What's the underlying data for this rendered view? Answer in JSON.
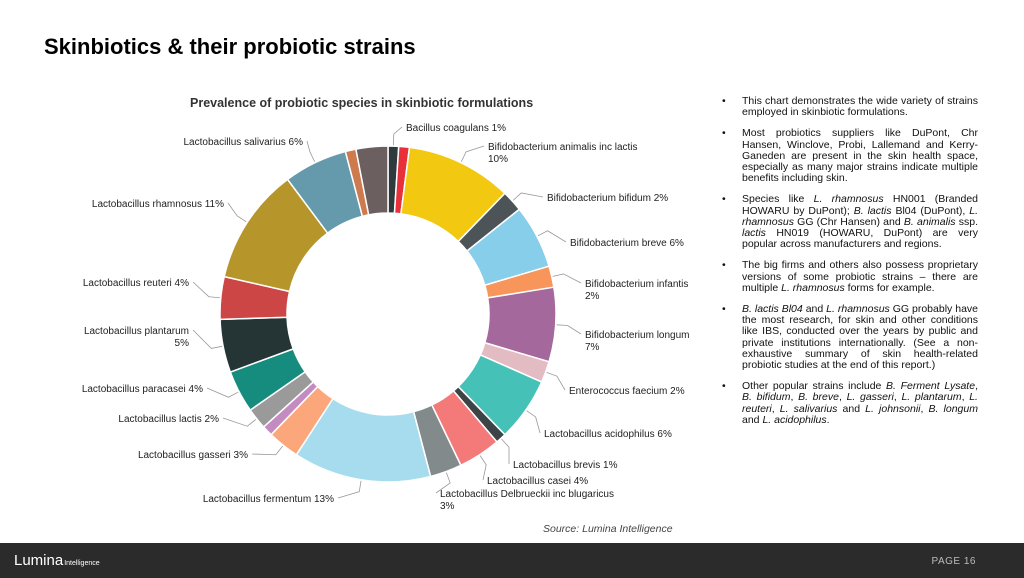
{
  "slide": {
    "title": "Skinbiotics & their probiotic strains",
    "source": "Source: Lumina Intelligence",
    "page_label": "PAGE 16",
    "logo_main": "Lumina",
    "logo_sub": "Intelligence"
  },
  "bullets": [
    {
      "html": "This chart demonstrates the wide variety of strains employed in skinbiotic formulations."
    },
    {
      "html": "Most probiotics suppliers like DuPont, Chr Hansen, Winclove, Probi, Lallemand and Kerry-Ganeden are present in the skin health space, especially as many major strains indicate multiple benefits including skin."
    },
    {
      "html": "Species like <i>L. rhamnosus</i> HN001 (Branded HOWARU by DuPont); <i>B. lactis</i> Bl04 (DuPont), <i>L. rhamnosus</i> GG (Chr Hansen) and <i>B. animalis</i> ssp. <i>lactis</i> HN019 (HOWARU, DuPont) are very popular across manufacturers and regions."
    },
    {
      "html": "The big firms and others also possess proprietary versions of some probiotic strains – there are multiple <i>L. rhamnosus</i> forms for example."
    },
    {
      "html": "<i>B. lactis Bl04</i> and <i>L. rhamnosus</i> GG probably have the most research, for skin and other conditions like IBS, conducted over the years by public and private institutions internationally. (See a non-exhaustive summary of skin health-related probiotic studies at the end of this report.)"
    },
    {
      "html": "Other popular strains include <i>B. Ferment Lysate</i>, <i>B. bifidum</i>, <i>B. breve</i>, <i>L. gasseri</i>, <i>L. plantarum</i>, <i>L. reuteri</i>, <i>L. salivarius</i> and <i>L. johnsonii</i>, <i>B. longum</i> and <i>L. acidophilus</i>."
    }
  ],
  "chart_data": {
    "type": "pie",
    "title": "Prevalence of probiotic species in skinbiotic formulations",
    "unit": "%",
    "slices": [
      {
        "name": "Bacillus coagulans",
        "value": 1,
        "label": "Bacillus coagulans 1%",
        "color": "#2f3a3d"
      },
      {
        "name": "",
        "value": 1,
        "label": "",
        "color": "#e8303a"
      },
      {
        "name": "Bifidobacterium animalis inc lactis",
        "value": 10,
        "label": "Bifidobacterium animalis inc lactis 10%",
        "color": "#f2c811"
      },
      {
        "name": "Bifidobacterium bifidum",
        "value": 2,
        "label": "Bifidobacterium bifidum 2%",
        "color": "#4d5458"
      },
      {
        "name": "Bifidobacterium breve",
        "value": 6,
        "label": "Bifidobacterium breve 6%",
        "color": "#87ceeb"
      },
      {
        "name": "Bifidobacterium infantis",
        "value": 2,
        "label": "Bifidobacterium infantis 2%",
        "color": "#f7955a"
      },
      {
        "name": "Bifidobacterium longum",
        "value": 7,
        "label": "Bifidobacterium longum 7%",
        "color": "#a4689c"
      },
      {
        "name": "Enterococcus faecium",
        "value": 2,
        "label": "Enterococcus faecium 2%",
        "color": "#e2bcc2"
      },
      {
        "name": "Lactobacillus acidophilus",
        "value": 6,
        "label": "Lactobacillus acidophilus 6%",
        "color": "#45c1b7"
      },
      {
        "name": "Lactobacillus brevis",
        "value": 1,
        "label": "Lactobacillus brevis 1%",
        "color": "#3c4448"
      },
      {
        "name": "Lactobacillus casei",
        "value": 4,
        "label": "Lactobacillus casei 4%",
        "color": "#f47a7a"
      },
      {
        "name": "Lactobacillus Delbrueckii inc blugaricus",
        "value": 3,
        "label": "Lactobacillus Delbrueckii inc blugaricus 3%",
        "color": "#838a8c"
      },
      {
        "name": "Lactobacillus fermentum",
        "value": 13,
        "label": "Lactobacillus fermentum 13%",
        "color": "#a7dcee"
      },
      {
        "name": "Lactobacillus gasseri",
        "value": 3,
        "label": "Lactobacillus gasseri 3%",
        "color": "#fba77b"
      },
      {
        "name": "",
        "value": 1,
        "label": "",
        "color": "#c48bc0"
      },
      {
        "name": "Lactobacillus lactis",
        "value": 2,
        "label": "Lactobacillus lactis 2%",
        "color": "#9a9a9a"
      },
      {
        "name": "Lactobacillus paracasei",
        "value": 4,
        "label": "Lactobacillus paracasei 4%",
        "color": "#168c7e"
      },
      {
        "name": "Lactobacillus plantarum",
        "value": 5,
        "label": "Lactobacillus plantarum 5%",
        "color": "#253536"
      },
      {
        "name": "Lactobacillus reuteri",
        "value": 4,
        "label": "Lactobacillus reuteri 4%",
        "color": "#cc4646"
      },
      {
        "name": "Lactobacillus rhamnosus",
        "value": 11,
        "label": "Lactobacillus rhamnosus 11%",
        "color": "#b6962a"
      },
      {
        "name": "Lactobacillus salivarius",
        "value": 6,
        "label": "Lactobacillus salivarius 6%",
        "color": "#649aab"
      },
      {
        "name": "",
        "value": 1,
        "label": "",
        "color": "#cd7a4e"
      },
      {
        "name": "",
        "value": 3,
        "label": "",
        "color": "#6b5f5f"
      }
    ]
  }
}
